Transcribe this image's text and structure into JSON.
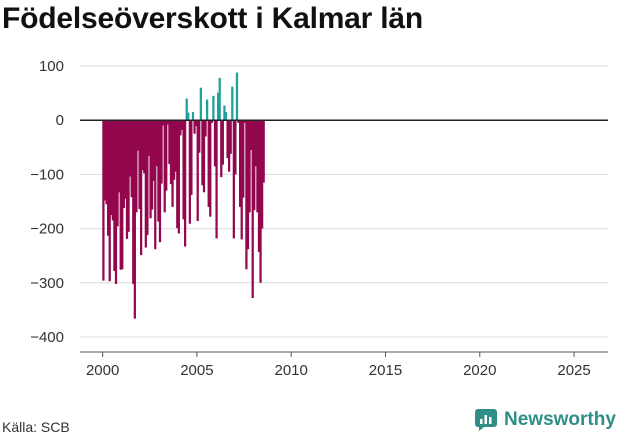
{
  "colors": {
    "negative": "#93074f",
    "positive": "#1fa09a",
    "grid": "#dcdcdc",
    "zero": "#222222",
    "brand": "#2f8f86"
  },
  "source": "Källa: SCB",
  "brand": {
    "name": "Newsworthy",
    "icon": "newsworthy-logo-icon"
  },
  "chart_data": {
    "type": "bar",
    "title": "Födelseöverskott i Kalmar län",
    "xlabel": "",
    "ylabel": "",
    "ylim": [
      -400,
      100
    ],
    "xlim": [
      1998.8,
      2026.8
    ],
    "yticks": [
      100,
      0,
      -100,
      -200,
      -300,
      -400
    ],
    "ytick_labels": [
      "100",
      "0",
      "−100",
      "−200",
      "−300",
      "−400"
    ],
    "xticks": [
      2000,
      2005,
      2010,
      2015,
      2020,
      2025
    ],
    "xtick_labels": [
      "2000",
      "2005",
      "2010",
      "2015",
      "2020",
      "2025"
    ],
    "bar_width_months": 0.75,
    "series": [
      {
        "name": "Födelseöverskott",
        "frequency": "monthly",
        "start": "2000-01",
        "values": [
          -296,
          -148,
          -155,
          -213,
          -297,
          -175,
          -185,
          -278,
          -302,
          -196,
          -133,
          -276,
          -275,
          -162,
          -145,
          -219,
          -206,
          -104,
          -142,
          -302,
          -366,
          -170,
          -56,
          -164,
          -249,
          -92,
          -98,
          -235,
          -212,
          -66,
          -181,
          -165,
          -112,
          -238,
          -85,
          -187,
          -225,
          -117,
          -10,
          -170,
          -130,
          -8,
          -81,
          -118,
          -160,
          -110,
          -95,
          -199,
          -209,
          -28,
          -18,
          -183,
          -233,
          40,
          14,
          -191,
          -138,
          15,
          -25,
          -11,
          -186,
          -60,
          60,
          -120,
          -133,
          -30,
          38,
          -160,
          -178,
          -5,
          45,
          -85,
          -218,
          51,
          78,
          -105,
          -82,
          27,
          15,
          -70,
          -95,
          -62,
          62,
          -218,
          -100,
          88,
          -5,
          -160,
          -220,
          -143,
          -5,
          -275,
          -238,
          -170,
          -55,
          -328,
          -166,
          -85,
          -170,
          -243,
          -300,
          -200,
          -115
        ]
      }
    ]
  }
}
